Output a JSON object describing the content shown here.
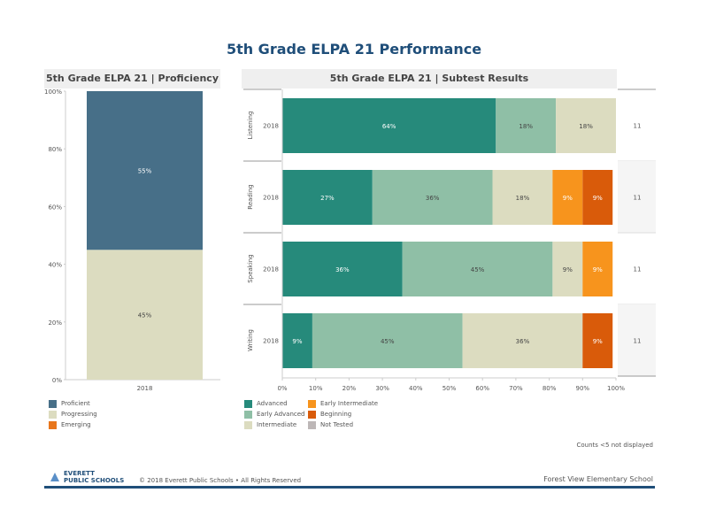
{
  "title": "5th Grade ELPA 21 Performance",
  "panels": {
    "left_title": "5th Grade ELPA 21 | Proficiency",
    "right_title": "5th Grade ELPA 21 | Subtest Results"
  },
  "colors": {
    "proficient": "#476f88",
    "progressing": "#dcdcc0",
    "emerging": "#e8761c",
    "advanced": "#268a7b",
    "early_advanced": "#8fbfa6",
    "intermediate": "#dcdcc0",
    "early_intermediate": "#f7941d",
    "beginning": "#d95b0a",
    "not_tested": "#bdb7b7"
  },
  "chart_data": [
    {
      "type": "bar",
      "title": "5th Grade ELPA 21 | Proficiency",
      "categories": [
        "2018"
      ],
      "ylim": [
        0,
        100
      ],
      "yticks": [
        "0%",
        "20%",
        "40%",
        "60%",
        "80%",
        "100%"
      ],
      "series": [
        {
          "name": "Progressing",
          "values": [
            45
          ],
          "label": "45%"
        },
        {
          "name": "Proficient",
          "values": [
            55
          ],
          "label": "55%"
        }
      ],
      "stacked": true
    },
    {
      "type": "bar",
      "title": "5th Grade ELPA 21 | Subtest Results",
      "orientation": "horizontal",
      "stacked": true,
      "xlim": [
        0,
        100
      ],
      "xticks": [
        "0%",
        "10%",
        "20%",
        "30%",
        "40%",
        "50%",
        "60%",
        "70%",
        "80%",
        "90%",
        "100%"
      ],
      "rows": [
        {
          "subtest": "Listening",
          "year": "2018",
          "side": "11",
          "segments": [
            {
              "cat": "Advanced",
              "value": 64,
              "label": "64%"
            },
            {
              "cat": "Early Advanced",
              "value": 18,
              "label": "18%"
            },
            {
              "cat": "Intermediate",
              "value": 18,
              "label": "18%"
            }
          ]
        },
        {
          "subtest": "Reading",
          "year": "2018",
          "side": "11",
          "segments": [
            {
              "cat": "Advanced",
              "value": 27,
              "label": "27%"
            },
            {
              "cat": "Early Advanced",
              "value": 36,
              "label": "36%"
            },
            {
              "cat": "Intermediate",
              "value": 18,
              "label": "18%"
            },
            {
              "cat": "Early Intermediate",
              "value": 9,
              "label": "9%"
            },
            {
              "cat": "Beginning",
              "value": 9,
              "label": "9%"
            }
          ]
        },
        {
          "subtest": "Speaking",
          "year": "2018",
          "side": "11",
          "segments": [
            {
              "cat": "Advanced",
              "value": 36,
              "label": "36%"
            },
            {
              "cat": "Early Advanced",
              "value": 45,
              "label": "45%"
            },
            {
              "cat": "Intermediate",
              "value": 9,
              "label": "9%"
            },
            {
              "cat": "Early Intermediate",
              "value": 9,
              "label": "9%"
            }
          ]
        },
        {
          "subtest": "Writing",
          "year": "2018",
          "side": "11",
          "segments": [
            {
              "cat": "Advanced",
              "value": 9,
              "label": "9%"
            },
            {
              "cat": "Early Advanced",
              "value": 45,
              "label": "45%"
            },
            {
              "cat": "Intermediate",
              "value": 36,
              "label": "36%"
            },
            {
              "cat": "Beginning",
              "value": 9,
              "label": "9%"
            }
          ]
        }
      ]
    }
  ],
  "legend_left": [
    {
      "label": "Proficient",
      "color": "#476f88"
    },
    {
      "label": "Progressing",
      "color": "#dcdcc0"
    },
    {
      "label": "Emerging",
      "color": "#e8761c"
    }
  ],
  "legend_right": [
    {
      "label": "Advanced",
      "color": "#268a7b"
    },
    {
      "label": "Early Intermediate",
      "color": "#f7941d"
    },
    {
      "label": "Early Advanced",
      "color": "#8fbfa6"
    },
    {
      "label": "Beginning",
      "color": "#d95b0a"
    },
    {
      "label": "Intermediate",
      "color": "#dcdcc0"
    },
    {
      "label": "Not Tested",
      "color": "#bdb7b7"
    }
  ],
  "footer": {
    "note": "Counts <5 not displayed",
    "logo_line1": "EVERETT",
    "logo_line2": "PUBLIC SCHOOLS",
    "copyright": "© 2018 Everett Public Schools • All Rights Reserved",
    "school": "Forest View Elementary School"
  }
}
